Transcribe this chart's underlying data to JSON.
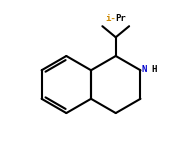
{
  "background_color": "#ffffff",
  "bond_color": "#000000",
  "N_color": "#0000cc",
  "iPr_i_color": "#cc8800",
  "iPr_Pr_color": "#000000",
  "lw": 1.5,
  "figsize": [
    1.79,
    1.53
  ],
  "dpi": 100,
  "xlim": [
    0,
    9
  ],
  "ylim": [
    0,
    8.5
  ]
}
